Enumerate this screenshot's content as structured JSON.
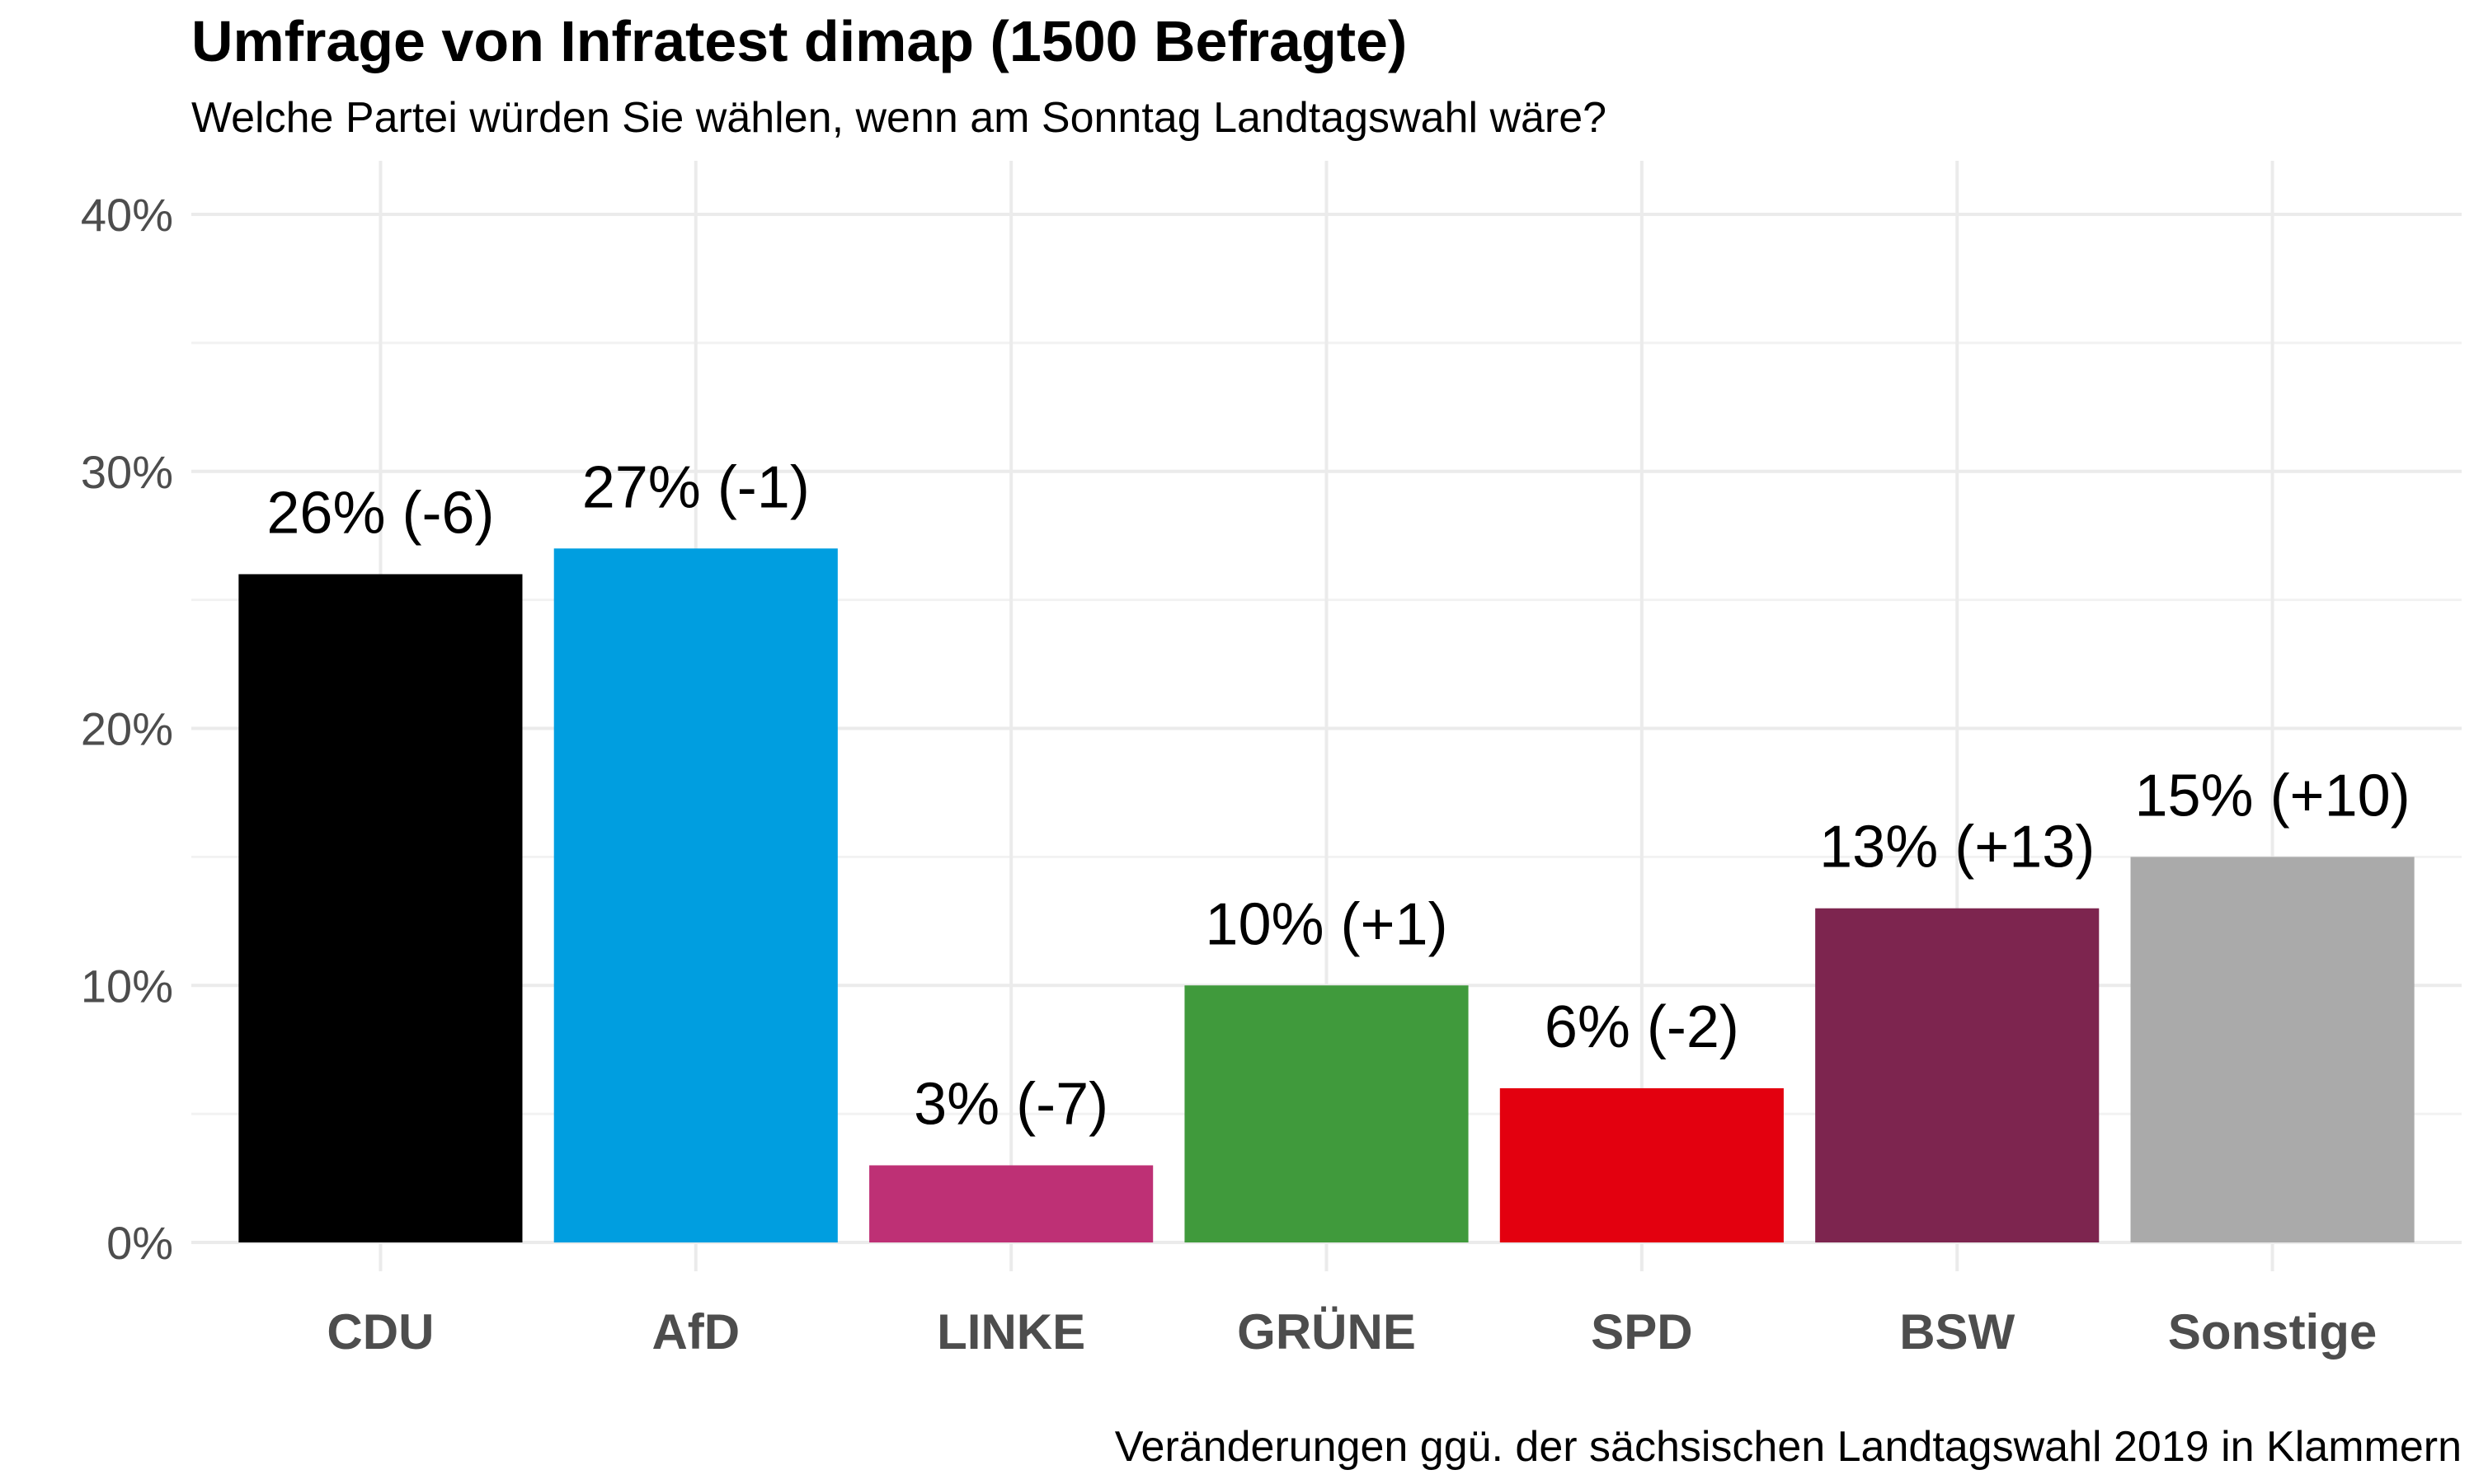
{
  "chart_data": {
    "type": "bar",
    "title": "Umfrage von Infratest dimap (1500 Befragte)",
    "subtitle": "Welche Partei würden Sie wählen, wenn am Sonntag Landtagswahl wäre?",
    "caption": "Veränderungen ggü. der sächsischen Landtagswahl 2019 in Klammern",
    "xlabel": "",
    "ylabel": "",
    "categories": [
      "CDU",
      "AfD",
      "LINKE",
      "GRÜNE",
      "SPD",
      "BSW",
      "Sonstige"
    ],
    "values": [
      26,
      27,
      3,
      10,
      6,
      13,
      15
    ],
    "data_labels": [
      "26% (-6)",
      "27% (-1)",
      "3% (-7)",
      "10% (+1)",
      "6% (-2)",
      "13% (+13)",
      "15% (+10)"
    ],
    "colors": [
      "#000000",
      "#009ee0",
      "#be3075",
      "#409a3c",
      "#e3000f",
      "#7d254f",
      "#aaaaaa"
    ],
    "ylim": [
      0,
      40
    ],
    "yticks": [
      0,
      10,
      20,
      30,
      40
    ],
    "ytick_labels": [
      "0%",
      "10%",
      "20%",
      "30%",
      "40%"
    ],
    "grid": true,
    "legend": "none"
  }
}
